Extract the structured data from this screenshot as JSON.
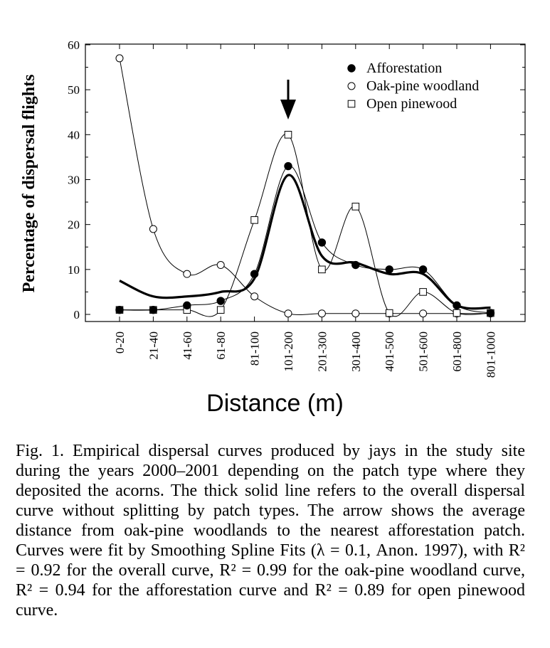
{
  "chart_data": {
    "type": "line",
    "categories": [
      "0-20",
      "21-40",
      "41-60",
      "61-80",
      "81-100",
      "101-200",
      "201-300",
      "301-400",
      "401-500",
      "501-600",
      "601-800",
      "801-1000"
    ],
    "ylabel": "Percentage of dispersal flights",
    "xlabel": "Distance (m)",
    "ylim": [
      0,
      60
    ],
    "yticks": [
      0,
      10,
      20,
      30,
      40,
      50,
      60
    ],
    "legend_position": "top-right",
    "series": [
      {
        "name": "Afforestation",
        "marker": "filled-circle",
        "values": [
          1,
          1,
          2,
          3,
          9,
          33,
          16,
          11,
          10,
          10,
          2,
          0.3
        ]
      },
      {
        "name": "Oak-pine woodland",
        "marker": "open-circle",
        "values": [
          57,
          19,
          9,
          11,
          4,
          0.2,
          0.2,
          0.2,
          0.2,
          0.2,
          0.2,
          0.2
        ]
      },
      {
        "name": "Open pinewood",
        "marker": "open-square",
        "values": [
          1,
          1,
          1,
          1,
          21,
          40,
          10,
          24,
          0.3,
          5,
          0.3,
          0.3
        ]
      }
    ],
    "overall_curve": [
      7.5,
      4,
      4,
      5,
      8,
      31,
      13,
      11.5,
      9,
      9,
      2,
      1.5
    ],
    "arrow_category": "101-200"
  },
  "caption": "Fig. 1. Empirical dispersal curves produced by jays in the study site during the years 2000–2001 depending on the patch type where they deposited the acorns. The thick solid line refers to the overall dispersal curve without splitting by patch types. The arrow shows the average distance from oak-pine woodlands to the nearest afforestation patch. Curves were fit by Smoothing Spline Fits (λ = 0.1, Anon. 1997), with R² = 0.92 for the overall curve, R² = 0.99 for the oak-pine woodland curve, R² = 0.94 for the afforestation curve and R² = 0.89 for open pinewood curve."
}
